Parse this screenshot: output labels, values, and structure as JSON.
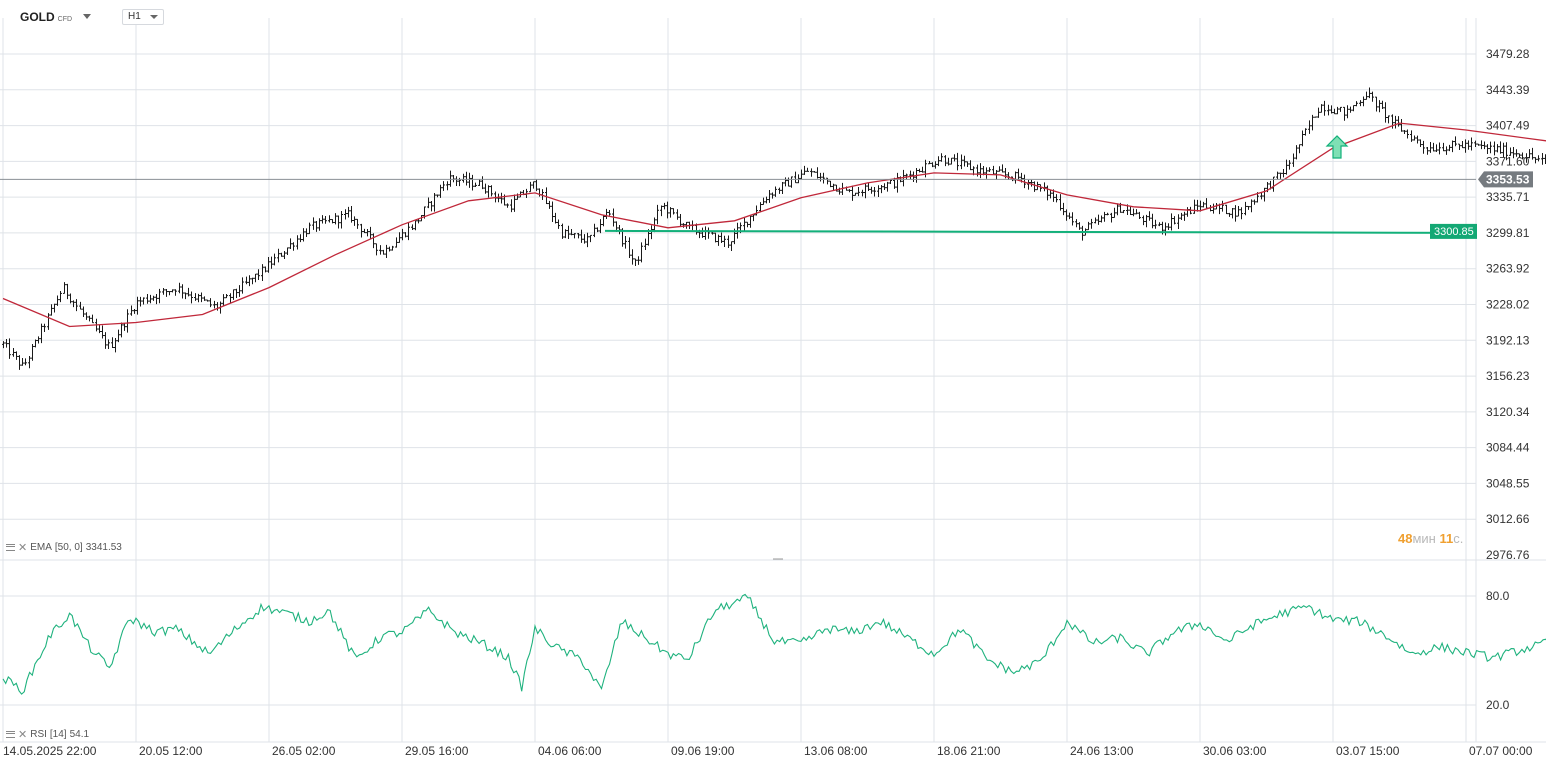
{
  "header": {
    "symbol": "GOLD",
    "symbol_suffix": "CFD",
    "timeframe": "H1"
  },
  "indicators": {
    "ema_label": "EMA",
    "ema_params": "[50, 0]",
    "ema_value": "3341.53",
    "rsi_label": "RSI",
    "rsi_params": "[14]",
    "rsi_value": "54.1"
  },
  "timer": {
    "minutes": "48",
    "min_unit": "мин",
    "seconds": "11",
    "sec_unit": "с."
  },
  "colors": {
    "candle": "#1a1a1a",
    "ema": "#c0283a",
    "support": "#13b07a",
    "rsi": "#1fb27e",
    "grid": "#dfe3e8",
    "axis_text": "#333333",
    "badge_current": "#767b80",
    "badge_level": "#13a874"
  },
  "chart_data": {
    "type": "candlestick",
    "price_ticks": [
      "3479.28",
      "3443.39",
      "3407.49",
      "3371.60",
      "3335.71",
      "3299.81",
      "3263.92",
      "3228.02",
      "3192.13",
      "3156.23",
      "3120.34",
      "3084.44",
      "3048.55",
      "3012.66",
      "2976.76"
    ],
    "price_range": [
      2976.76,
      3479.28
    ],
    "time_ticks": [
      "14.05.2025  22:00",
      "20.05  12:00",
      "26.05  02:00",
      "29.05  16:00",
      "04.06  06:00",
      "09.06  19:00",
      "13.06  08:00",
      "18.06  21:00",
      "24.06  13:00",
      "30.06  03:00",
      "03.07  15:00",
      "07.07  00:00"
    ],
    "current_price": "3353.53",
    "support_level": "3300.85",
    "up_signal": {
      "label": "arrow-up",
      "near_price": 3375
    },
    "price_path": [
      {
        "t": 0,
        "p": 3188
      },
      {
        "t": 0.15,
        "p": 3165
      },
      {
        "t": 0.3,
        "p": 3205
      },
      {
        "t": 0.45,
        "p": 3245
      },
      {
        "t": 0.6,
        "p": 3218
      },
      {
        "t": 0.8,
        "p": 3185
      },
      {
        "t": 1.0,
        "p": 3230
      },
      {
        "t": 1.3,
        "p": 3245
      },
      {
        "t": 1.6,
        "p": 3225
      },
      {
        "t": 1.95,
        "p": 3262
      },
      {
        "t": 2.3,
        "p": 3305
      },
      {
        "t": 2.6,
        "p": 3318
      },
      {
        "t": 2.85,
        "p": 3280
      },
      {
        "t": 3.1,
        "p": 3310
      },
      {
        "t": 3.35,
        "p": 3355
      },
      {
        "t": 3.6,
        "p": 3348
      },
      {
        "t": 3.8,
        "p": 3326
      },
      {
        "t": 4.0,
        "p": 3350
      },
      {
        "t": 4.2,
        "p": 3300
      },
      {
        "t": 4.4,
        "p": 3292
      },
      {
        "t": 4.55,
        "p": 3322
      },
      {
        "t": 4.75,
        "p": 3268
      },
      {
        "t": 4.95,
        "p": 3328
      },
      {
        "t": 5.15,
        "p": 3305
      },
      {
        "t": 5.45,
        "p": 3290
      },
      {
        "t": 5.75,
        "p": 3338
      },
      {
        "t": 6.05,
        "p": 3362
      },
      {
        "t": 6.35,
        "p": 3340
      },
      {
        "t": 6.7,
        "p": 3350
      },
      {
        "t": 7.05,
        "p": 3375
      },
      {
        "t": 7.35,
        "p": 3362
      },
      {
        "t": 7.65,
        "p": 3355
      },
      {
        "t": 7.9,
        "p": 3336
      },
      {
        "t": 8.1,
        "p": 3300
      },
      {
        "t": 8.4,
        "p": 3325
      },
      {
        "t": 8.7,
        "p": 3305
      },
      {
        "t": 9.0,
        "p": 3328
      },
      {
        "t": 9.3,
        "p": 3320
      },
      {
        "t": 9.65,
        "p": 3365
      },
      {
        "t": 9.9,
        "p": 3428
      },
      {
        "t": 10.1,
        "p": 3420
      },
      {
        "t": 10.25,
        "p": 3440
      },
      {
        "t": 10.45,
        "p": 3410
      },
      {
        "t": 10.7,
        "p": 3385
      },
      {
        "t": 11.0,
        "p": 3388
      },
      {
        "t": 11.4,
        "p": 3380
      },
      {
        "t": 11.8,
        "p": 3360
      },
      {
        "t": 12.2,
        "p": 3360
      },
      {
        "t": 12.5,
        "p": 3380
      },
      {
        "t": 12.75,
        "p": 3362
      },
      {
        "t": 12.95,
        "p": 3382
      },
      {
        "t": 13.15,
        "p": 3342
      },
      {
        "t": 13.4,
        "p": 3315
      },
      {
        "t": 13.7,
        "p": 3330
      },
      {
        "t": 14.0,
        "p": 3322
      },
      {
        "t": 14.2,
        "p": 3340
      },
      {
        "t": 14.4,
        "p": 3330
      },
      {
        "t": 14.6,
        "p": 3285
      },
      {
        "t": 14.85,
        "p": 3268
      },
      {
        "t": 15.1,
        "p": 3295
      },
      {
        "t": 15.35,
        "p": 3300
      },
      {
        "t": 15.6,
        "p": 3330
      },
      {
        "t": 15.85,
        "p": 3350
      },
      {
        "t": 16.15,
        "p": 3340
      },
      {
        "t": 16.45,
        "p": 3334
      },
      {
        "t": 16.7,
        "p": 3355
      },
      {
        "t": 16.95,
        "p": 3350
      },
      {
        "t": 17.05,
        "p": 3362
      },
      {
        "t": 17.15,
        "p": 3352
      }
    ],
    "ema_path": [
      {
        "t": 0,
        "p": 3234
      },
      {
        "t": 0.5,
        "p": 3206
      },
      {
        "t": 1.0,
        "p": 3210
      },
      {
        "t": 1.5,
        "p": 3218
      },
      {
        "t": 2.0,
        "p": 3245
      },
      {
        "t": 2.5,
        "p": 3278
      },
      {
        "t": 3.0,
        "p": 3308
      },
      {
        "t": 3.5,
        "p": 3332
      },
      {
        "t": 4.0,
        "p": 3340
      },
      {
        "t": 4.5,
        "p": 3318
      },
      {
        "t": 5.0,
        "p": 3305
      },
      {
        "t": 5.5,
        "p": 3312
      },
      {
        "t": 6.0,
        "p": 3335
      },
      {
        "t": 6.5,
        "p": 3350
      },
      {
        "t": 7.0,
        "p": 3360
      },
      {
        "t": 7.5,
        "p": 3358
      },
      {
        "t": 8.0,
        "p": 3338
      },
      {
        "t": 8.5,
        "p": 3326
      },
      {
        "t": 9.0,
        "p": 3322
      },
      {
        "t": 9.5,
        "p": 3342
      },
      {
        "t": 10.0,
        "p": 3385
      },
      {
        "t": 10.5,
        "p": 3410
      },
      {
        "t": 11.0,
        "p": 3403
      },
      {
        "t": 11.5,
        "p": 3394
      },
      {
        "t": 12.0,
        "p": 3385
      },
      {
        "t": 12.5,
        "p": 3375
      },
      {
        "t": 13.0,
        "p": 3365
      },
      {
        "t": 13.5,
        "p": 3355
      },
      {
        "t": 14.0,
        "p": 3336
      },
      {
        "t": 14.5,
        "p": 3330
      },
      {
        "t": 15.0,
        "p": 3316
      },
      {
        "t": 15.35,
        "p": 3298
      },
      {
        "t": 15.7,
        "p": 3306
      },
      {
        "t": 16.0,
        "p": 3322
      },
      {
        "t": 16.5,
        "p": 3332
      },
      {
        "t": 17.15,
        "p": 3341.53
      }
    ],
    "rsi": {
      "levels": [
        80.0,
        20.0
      ],
      "level_labels": [
        "80.0",
        "20.0"
      ],
      "path": [
        {
          "t": 0,
          "p": 35
        },
        {
          "t": 0.15,
          "p": 28
        },
        {
          "t": 0.35,
          "p": 58
        },
        {
          "t": 0.5,
          "p": 70
        },
        {
          "t": 0.65,
          "p": 52
        },
        {
          "t": 0.8,
          "p": 40
        },
        {
          "t": 0.95,
          "p": 68
        },
        {
          "t": 1.15,
          "p": 60
        },
        {
          "t": 1.3,
          "p": 62
        },
        {
          "t": 1.55,
          "p": 48
        },
        {
          "t": 1.75,
          "p": 62
        },
        {
          "t": 1.95,
          "p": 74
        },
        {
          "t": 2.15,
          "p": 70
        },
        {
          "t": 2.3,
          "p": 66
        },
        {
          "t": 2.45,
          "p": 72
        },
        {
          "t": 2.65,
          "p": 45
        },
        {
          "t": 2.85,
          "p": 58
        },
        {
          "t": 3.0,
          "p": 60
        },
        {
          "t": 3.2,
          "p": 72
        },
        {
          "t": 3.4,
          "p": 60
        },
        {
          "t": 3.6,
          "p": 54
        },
        {
          "t": 3.8,
          "p": 46
        },
        {
          "t": 3.9,
          "p": 30
        },
        {
          "t": 4.0,
          "p": 62
        },
        {
          "t": 4.15,
          "p": 52
        },
        {
          "t": 4.35,
          "p": 45
        },
        {
          "t": 4.5,
          "p": 28
        },
        {
          "t": 4.65,
          "p": 66
        },
        {
          "t": 4.85,
          "p": 56
        },
        {
          "t": 5.0,
          "p": 48
        },
        {
          "t": 5.15,
          "p": 45
        },
        {
          "t": 5.35,
          "p": 72
        },
        {
          "t": 5.6,
          "p": 79
        },
        {
          "t": 5.8,
          "p": 55
        },
        {
          "t": 6.0,
          "p": 54
        },
        {
          "t": 6.2,
          "p": 62
        },
        {
          "t": 6.4,
          "p": 60
        },
        {
          "t": 6.6,
          "p": 66
        },
        {
          "t": 6.8,
          "p": 57
        },
        {
          "t": 7.0,
          "p": 48
        },
        {
          "t": 7.2,
          "p": 62
        },
        {
          "t": 7.4,
          "p": 45
        },
        {
          "t": 7.6,
          "p": 38
        },
        {
          "t": 7.8,
          "p": 44
        },
        {
          "t": 8.0,
          "p": 66
        },
        {
          "t": 8.2,
          "p": 54
        },
        {
          "t": 8.4,
          "p": 57
        },
        {
          "t": 8.6,
          "p": 48
        },
        {
          "t": 8.8,
          "p": 60
        },
        {
          "t": 9.0,
          "p": 65
        },
        {
          "t": 9.2,
          "p": 55
        },
        {
          "t": 9.4,
          "p": 64
        },
        {
          "t": 9.6,
          "p": 70
        },
        {
          "t": 9.8,
          "p": 74
        },
        {
          "t": 10.0,
          "p": 67
        },
        {
          "t": 10.2,
          "p": 66
        },
        {
          "t": 10.4,
          "p": 58
        },
        {
          "t": 10.6,
          "p": 48
        },
        {
          "t": 10.8,
          "p": 52
        },
        {
          "t": 11.0,
          "p": 49
        },
        {
          "t": 11.2,
          "p": 46
        },
        {
          "t": 11.4,
          "p": 50
        },
        {
          "t": 11.6,
          "p": 54
        },
        {
          "t": 11.8,
          "p": 46
        },
        {
          "t": 12.0,
          "p": 58
        },
        {
          "t": 12.2,
          "p": 48
        },
        {
          "t": 12.4,
          "p": 50
        },
        {
          "t": 12.6,
          "p": 44
        },
        {
          "t": 12.8,
          "p": 52
        },
        {
          "t": 13.0,
          "p": 42
        },
        {
          "t": 13.2,
          "p": 54
        },
        {
          "t": 13.4,
          "p": 60
        },
        {
          "t": 13.6,
          "p": 46
        },
        {
          "t": 13.8,
          "p": 36
        },
        {
          "t": 14.0,
          "p": 50
        },
        {
          "t": 14.2,
          "p": 56
        },
        {
          "t": 14.35,
          "p": 38
        },
        {
          "t": 14.55,
          "p": 52
        },
        {
          "t": 14.75,
          "p": 56
        },
        {
          "t": 14.95,
          "p": 52
        },
        {
          "t": 15.15,
          "p": 40
        },
        {
          "t": 15.35,
          "p": 30
        },
        {
          "t": 15.55,
          "p": 38
        },
        {
          "t": 15.75,
          "p": 55
        },
        {
          "t": 15.95,
          "p": 66
        },
        {
          "t": 16.15,
          "p": 76
        },
        {
          "t": 16.3,
          "p": 82
        },
        {
          "t": 16.5,
          "p": 56
        },
        {
          "t": 16.7,
          "p": 60
        },
        {
          "t": 16.9,
          "p": 64
        },
        {
          "t": 17.0,
          "p": 62
        },
        {
          "t": 17.15,
          "p": 54.1
        }
      ]
    }
  }
}
